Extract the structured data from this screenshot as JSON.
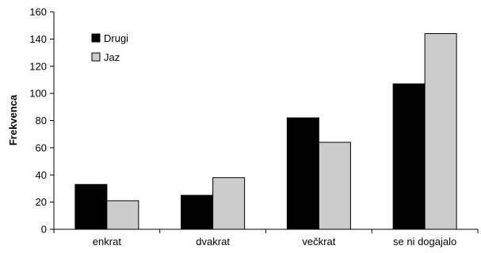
{
  "chart_data": {
    "type": "bar",
    "title": "",
    "xlabel": "",
    "ylabel": "Frekvenca",
    "ylim": [
      0,
      160
    ],
    "yticks": [
      0,
      20,
      40,
      60,
      80,
      100,
      120,
      140,
      160
    ],
    "categories": [
      "enkrat",
      "dvakrat",
      "večkrat",
      "se ni dogajalo"
    ],
    "series": [
      {
        "name": "Drugi",
        "values": [
          33,
          25,
          82,
          107
        ],
        "color": "#000000"
      },
      {
        "name": "Jaz",
        "values": [
          21,
          38,
          64,
          144
        ],
        "color": "#cccccc"
      }
    ],
    "legend": "top-left",
    "grid": false
  }
}
